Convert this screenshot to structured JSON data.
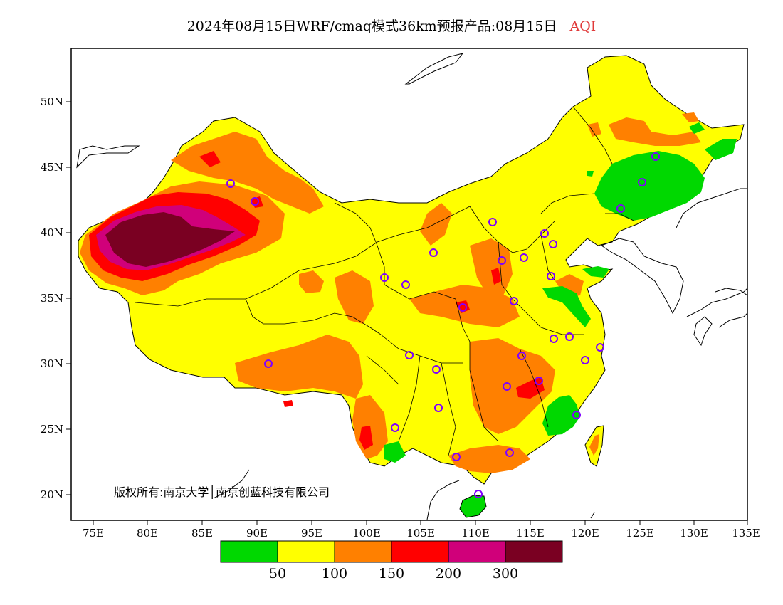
{
  "title": {
    "main": "2024年08月15日WRF/cmaq模式36km预报产品:08月15日",
    "variable": "AQI"
  },
  "axes": {
    "lon_ticks": [
      "75E",
      "80E",
      "85E",
      "90E",
      "95E",
      "100E",
      "105E",
      "110E",
      "115E",
      "120E",
      "125E",
      "130E",
      "135E"
    ],
    "lat_ticks": [
      "50N",
      "45N",
      "40N",
      "35N",
      "30N",
      "25N",
      "20N"
    ]
  },
  "copyright": "版权所有:南京大学│南京创蓝科技有限公司",
  "legend": {
    "colors": [
      "#00d800",
      "#ffff00",
      "#ff8000",
      "#ff0000",
      "#d0007a",
      "#7a0022"
    ],
    "breaks": [
      "50",
      "100",
      "150",
      "200",
      "300"
    ]
  },
  "colors": {
    "good": "#00d800",
    "moderate": "#ffff00",
    "usg": "#ff8000",
    "unhealthy": "#ff0000",
    "very_unhealthy": "#d0007a",
    "hazardous": "#7a0022",
    "station_marker": "#8000ff"
  }
}
